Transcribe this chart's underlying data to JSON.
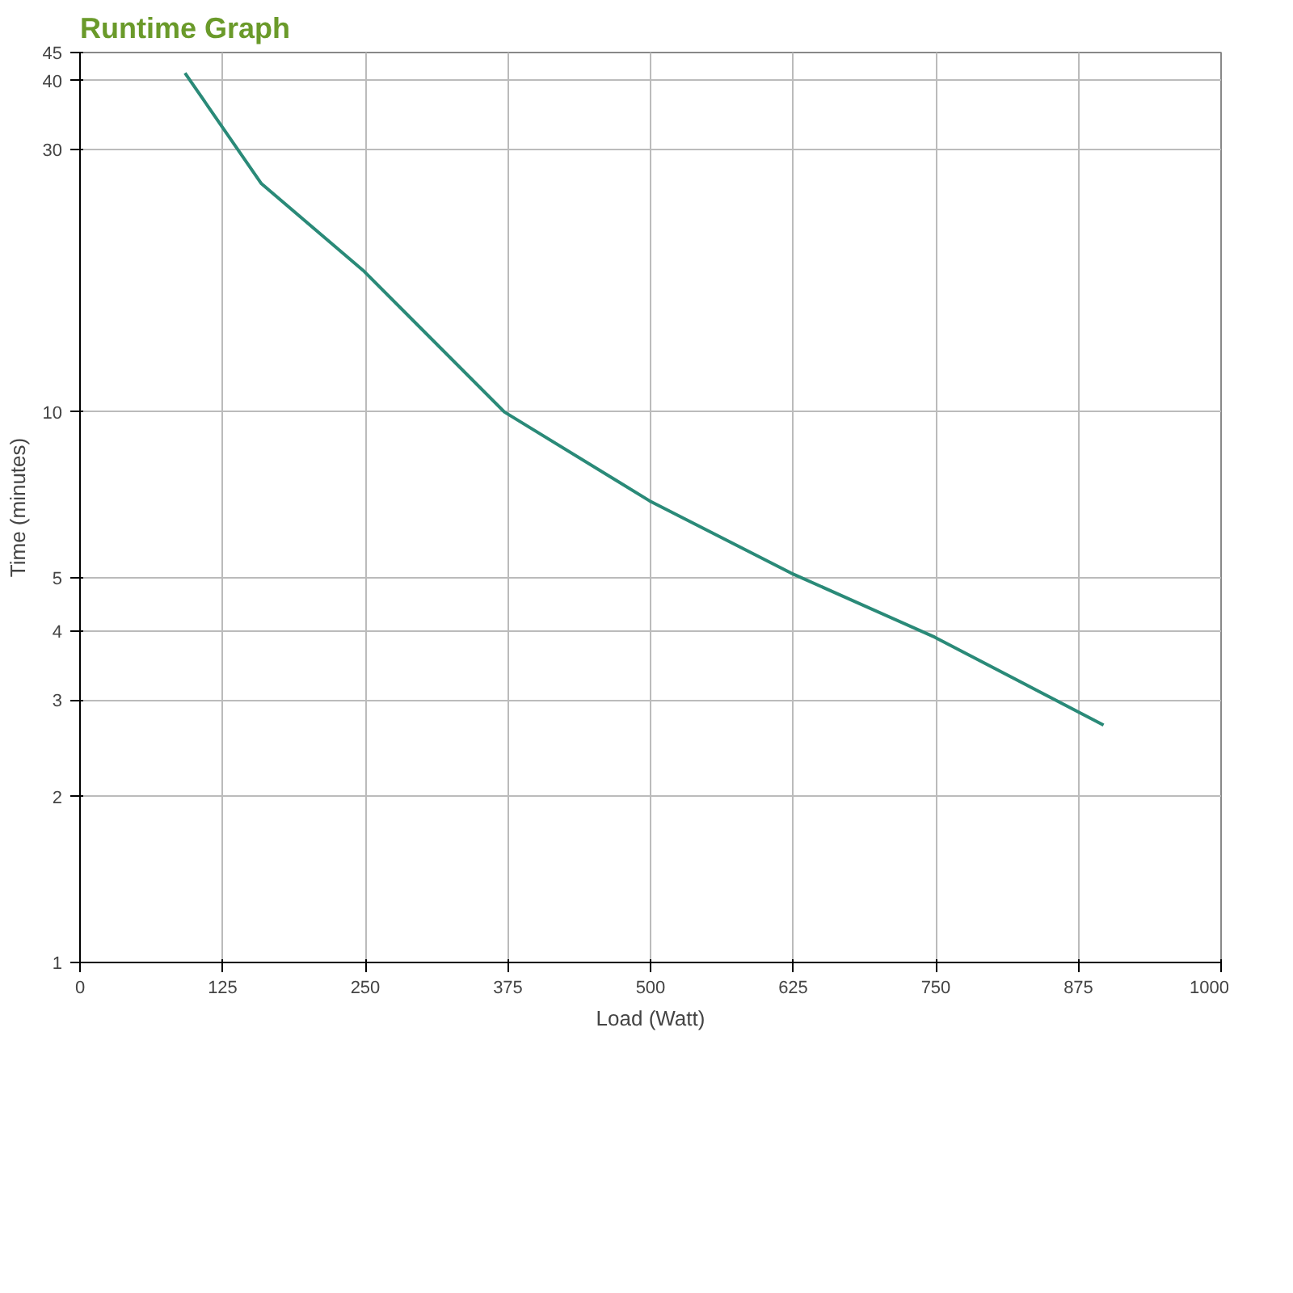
{
  "chart_data": {
    "type": "line",
    "title": "Runtime Graph",
    "xlabel": "Load (Watt)",
    "ylabel": "Time (minutes)",
    "x": [
      92,
      159,
      248,
      372,
      499,
      623,
      749,
      897
    ],
    "series": [
      {
        "color": "#2a8a78",
        "values": [
          41.3,
          26,
          18.1,
          10,
          6.9,
          5.1,
          3.9,
          2.7
        ]
      }
    ],
    "xlim": [
      0,
      1000
    ],
    "xticks": [
      0,
      125,
      250,
      375,
      500,
      625,
      750,
      875,
      1000
    ],
    "ylim": [
      1,
      45
    ],
    "yticks": [
      1,
      2,
      3,
      4,
      5,
      10,
      30,
      40,
      45
    ],
    "log": "y",
    "grid": true,
    "marker": "none",
    "line_style": "solid"
  }
}
